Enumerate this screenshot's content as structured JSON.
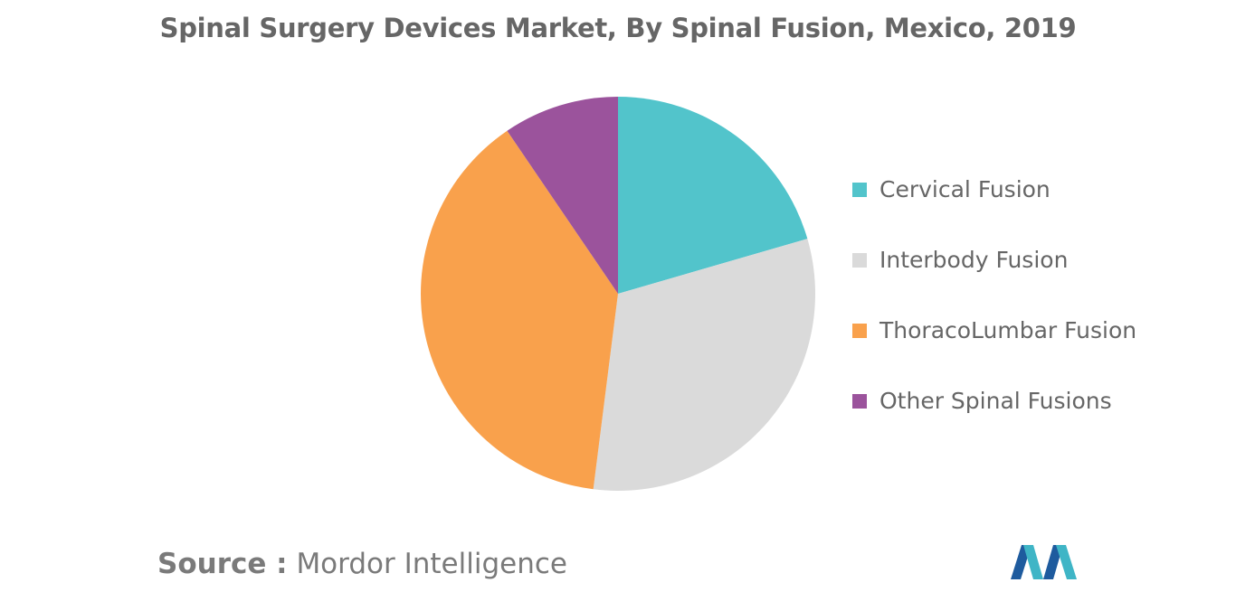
{
  "chart_data": {
    "type": "pie",
    "title": "Spinal Surgery Devices Market, By Spinal Fusion, Mexico, 2019",
    "categories": [
      "Cervical Fusion",
      "Interbody Fusion",
      "ThoracoLumbar Fusion",
      "Other Spinal Fusions"
    ],
    "values": [
      20.5,
      31.5,
      38.5,
      9.5
    ],
    "colors": [
      "#52C4CB",
      "#DADADA",
      "#F9A14C",
      "#9B539C"
    ],
    "legend_position": "right",
    "start_angle_deg": 0,
    "direction": "clockwise"
  },
  "source": {
    "prefix": "Source :",
    "name": "Mordor Intelligence"
  },
  "logo": {
    "icon": "mordor-intelligence-logo",
    "colors": [
      "#1E5B9E",
      "#3FB5C6"
    ]
  }
}
